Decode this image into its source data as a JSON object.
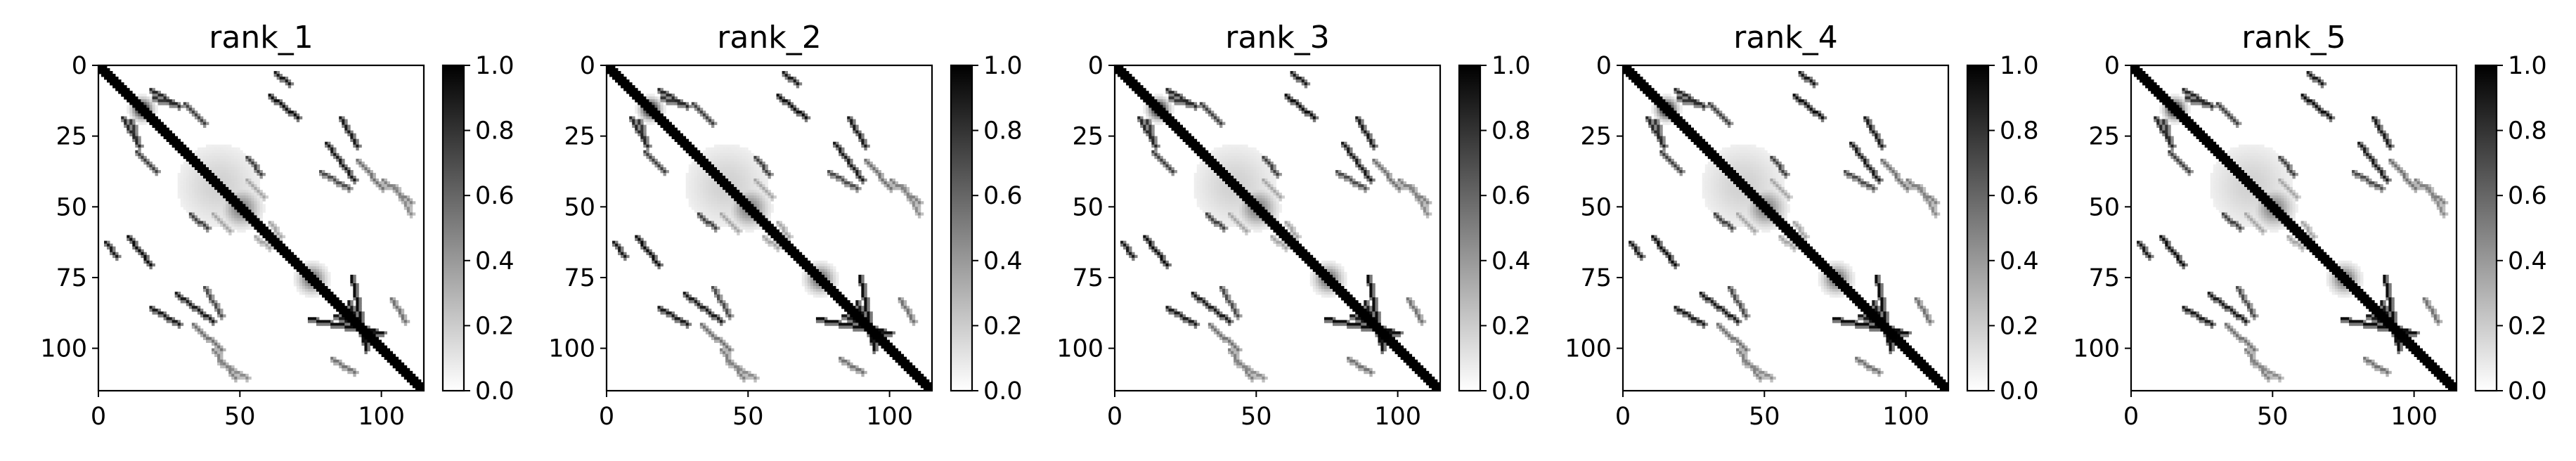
{
  "chart_data": {
    "type": "heatmap",
    "matrix_size": 115,
    "colormap": "gray_r",
    "xlim": [
      0,
      115
    ],
    "ylim": [
      115,
      0
    ],
    "x_ticks": [
      0,
      50,
      100
    ],
    "y_ticks": [
      0,
      25,
      50,
      75,
      100
    ],
    "colorbar": {
      "range": [
        0.0,
        1.0
      ],
      "ticks": [
        0.0,
        0.2,
        0.4,
        0.6,
        0.8,
        1.0
      ],
      "tick_labels": [
        "0.0",
        "0.2",
        "0.4",
        "0.6",
        "0.8",
        "1.0"
      ]
    },
    "grid": false,
    "legend": "none",
    "structure": {
      "diagonal": {
        "value": 1.0,
        "band_width": 2
      },
      "blobs": [
        {
          "center": [
            15,
            15
          ],
          "radius": 2.2,
          "value": 1.0
        },
        {
          "center": [
            42,
            42
          ],
          "radius": 10,
          "value": 0.18
        },
        {
          "center": [
            50,
            50
          ],
          "radius": 4,
          "value": 0.5
        },
        {
          "center": [
            75,
            75
          ],
          "radius": 3,
          "value": 0.6
        }
      ],
      "contact_segments": [
        {
          "from": [
            18,
            8
          ],
          "to": [
            28,
            14
          ],
          "value": 0.85
        },
        {
          "from": [
            30,
            13
          ],
          "to": [
            37,
            20
          ],
          "value": 0.75
        },
        {
          "from": [
            32,
            52
          ],
          "to": [
            38,
            57
          ],
          "value": 0.75
        },
        {
          "from": [
            62,
            2
          ],
          "to": [
            67,
            6
          ],
          "value": 0.9
        },
        {
          "from": [
            60,
            10
          ],
          "to": [
            70,
            18
          ],
          "value": 0.95
        },
        {
          "from": [
            85,
            18
          ],
          "to": [
            91,
            28
          ],
          "value": 0.9
        },
        {
          "from": [
            78,
            37
          ],
          "to": [
            88,
            43
          ],
          "value": 0.7
        },
        {
          "from": [
            100,
            40
          ],
          "to": [
            110,
            48
          ],
          "value": 0.5
        },
        {
          "from": [
            27,
            80
          ],
          "to": [
            40,
            90
          ],
          "value": 0.9
        },
        {
          "from": [
            33,
            91
          ],
          "to": [
            43,
            100
          ],
          "value": 0.55
        },
        {
          "from": [
            74,
            89
          ],
          "to": [
            100,
            94
          ],
          "value": 0.95
        },
        {
          "from": [
            88,
            83
          ],
          "to": [
            94,
            98
          ],
          "value": 0.9
        },
        {
          "from": [
            42,
            104
          ],
          "to": [
            52,
            110
          ],
          "value": 0.45
        },
        {
          "from": [
            82,
            103
          ],
          "to": [
            90,
            108
          ],
          "value": 0.55
        },
        {
          "from": [
            55,
            60
          ],
          "to": [
            60,
            64
          ],
          "value": 0.35
        },
        {
          "from": [
            11,
            19
          ],
          "to": [
            13,
            27
          ],
          "value": 0.8
        },
        {
          "from": [
            52,
            40
          ],
          "to": [
            58,
            46
          ],
          "value": 0.35
        }
      ]
    },
    "panels": [
      {
        "title": "rank_1"
      },
      {
        "title": "rank_2"
      },
      {
        "title": "rank_3"
      },
      {
        "title": "rank_4"
      },
      {
        "title": "rank_5"
      }
    ]
  }
}
